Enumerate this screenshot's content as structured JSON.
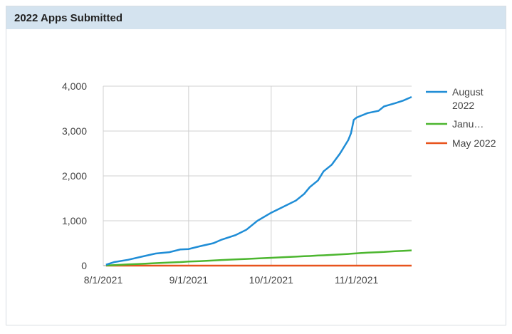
{
  "chart_data": {
    "type": "line",
    "title": "2022 Apps Submitted",
    "x": [
      "8/2/2021",
      "8/5/2021",
      "8/10/2021",
      "8/15/2021",
      "8/20/2021",
      "8/25/2021",
      "8/29/2021",
      "9/1/2021",
      "9/5/2021",
      "9/10/2021",
      "9/13/2021",
      "9/18/2021",
      "9/22/2021",
      "9/26/2021",
      "10/1/2021",
      "10/5/2021",
      "10/10/2021",
      "10/13/2021",
      "10/15/2021",
      "10/18/2021",
      "10/20/2021",
      "10/23/2021",
      "10/26/2021",
      "10/29/2021",
      "10/30/2021",
      "10/31/2021",
      "11/1/2021",
      "11/5/2021",
      "11/9/2021",
      "11/11/2021",
      "11/15/2021",
      "11/18/2021",
      "11/21/2021"
    ],
    "series": [
      {
        "name": "August 2022",
        "color": "#1f8dd6",
        "values": [
          20,
          80,
          130,
          200,
          270,
          300,
          360,
          370,
          430,
          500,
          580,
          680,
          800,
          1000,
          1180,
          1300,
          1450,
          1600,
          1750,
          1900,
          2100,
          2250,
          2500,
          2800,
          2950,
          3250,
          3300,
          3400,
          3450,
          3550,
          3620,
          3680,
          3760
        ]
      },
      {
        "name": "Janu…",
        "color": "#4cb62f",
        "values": [
          3,
          12,
          27,
          40,
          55,
          70,
          80,
          90,
          100,
          115,
          125,
          140,
          150,
          160,
          175,
          185,
          200,
          210,
          215,
          225,
          230,
          240,
          250,
          260,
          265,
          270,
          275,
          290,
          300,
          305,
          320,
          330,
          340
        ]
      },
      {
        "name": "May 2022",
        "color": "#e8531d",
        "values": [
          0,
          0,
          0,
          0,
          0,
          0,
          0,
          0,
          0,
          0,
          0,
          0,
          0,
          0,
          0,
          0,
          0,
          0,
          0,
          0,
          0,
          0,
          0,
          0,
          0,
          0,
          0,
          0,
          0,
          0,
          0,
          0,
          0
        ]
      }
    ],
    "xlim": [
      "8/1/2021",
      "11/21/2021"
    ],
    "xticks": [
      "8/1/2021",
      "9/1/2021",
      "10/1/2021",
      "11/1/2021"
    ],
    "ylim": [
      0,
      4000
    ],
    "yticks": [
      0,
      {
        "value": 1000,
        "label": "1,000"
      },
      {
        "value": 2000,
        "label": "2,000"
      },
      {
        "value": 3000,
        "label": "3,000"
      },
      {
        "value": 4000,
        "label": "4,000"
      }
    ],
    "grid": true,
    "legend": "right"
  }
}
